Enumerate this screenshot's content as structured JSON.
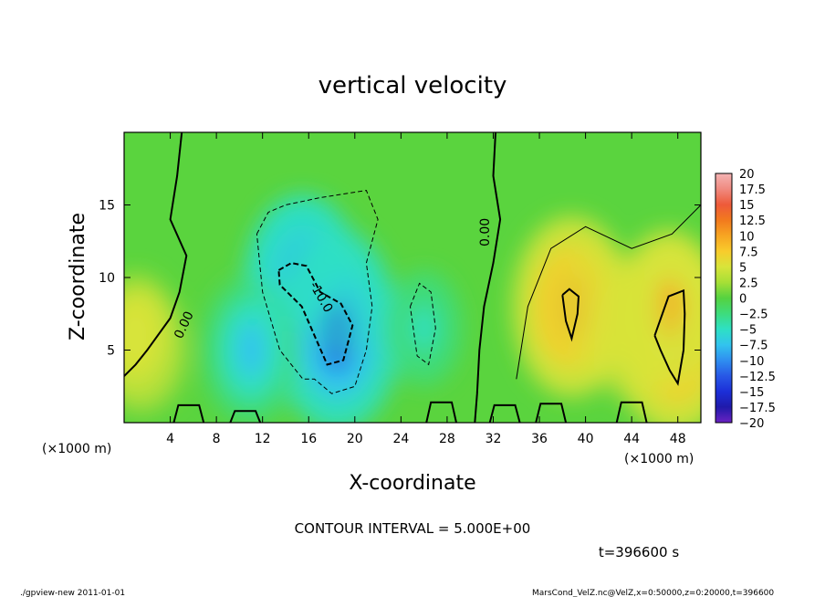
{
  "chart_data": {
    "type": "heatmap",
    "title": "vertical velocity",
    "xlabel": "X-coordinate",
    "ylabel": "Z-coordinate",
    "xunit_note_left": "(×1000 m)",
    "xunit_note_right": "(×1000 m)",
    "xlim": [
      0,
      50
    ],
    "ylim": [
      0,
      20
    ],
    "xticks": [
      "4",
      "8",
      "12",
      "16",
      "20",
      "24",
      "28",
      "32",
      "36",
      "40",
      "44",
      "48"
    ],
    "yticks": [
      "5",
      "10",
      "15"
    ],
    "colorbar": {
      "labels": [
        "20",
        "17.5",
        "15",
        "12.5",
        "10",
        "7.5",
        "5",
        "2.5",
        "0",
        "−2.5",
        "−5",
        "−7.5",
        "−10",
        "−12.5",
        "−15",
        "−17.5",
        "−20"
      ],
      "colors": [
        "#f4b4b4",
        "#f08a80",
        "#ee5a3a",
        "#f27a1e",
        "#f7a522",
        "#f8cc2c",
        "#d8e43a",
        "#a6df36",
        "#55d240",
        "#3edc7c",
        "#2ee0c4",
        "#32c4ee",
        "#2f8ef0",
        "#2858e6",
        "#1c2fd8",
        "#1f1aaa",
        "#6a22c2"
      ]
    },
    "contour_labels": [
      "0.00",
      "0.00",
      "-10.0"
    ],
    "contour_interval_text": "CONTOUR INTERVAL = 5.000E+00",
    "time_text": "t=396600 s",
    "features": [
      {
        "kind": "downdraft",
        "x": 15.5,
        "z": 9.5,
        "value": -11
      },
      {
        "kind": "downdraft",
        "x": 18.5,
        "z": 6.0,
        "value": -12
      },
      {
        "kind": "downdraft",
        "x": 11.0,
        "z": 5.0,
        "value": -8
      },
      {
        "kind": "downdraft",
        "x": 26.0,
        "z": 6.5,
        "value": -5
      },
      {
        "kind": "updraft",
        "x": 38.8,
        "z": 8.0,
        "value": 11
      },
      {
        "kind": "updraft",
        "x": 47.8,
        "z": 5.8,
        "value": 12
      },
      {
        "kind": "updraft",
        "x": 47.2,
        "z": 7.8,
        "value": 9
      },
      {
        "kind": "updraft",
        "x": 1.0,
        "z": 6.0,
        "value": 6
      }
    ]
  },
  "footer": {
    "left": "./gpview-new   2011-01-01",
    "right": "MarsCond_VelZ.nc@VelZ,x=0:50000,z=0:20000,t=396600"
  }
}
